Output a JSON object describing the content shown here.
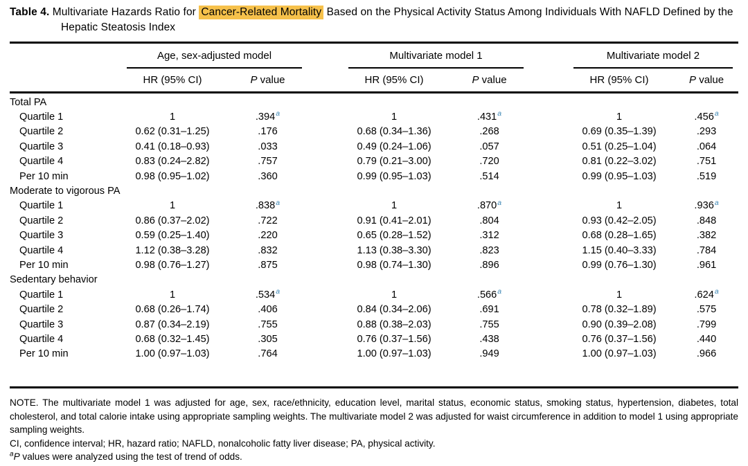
{
  "colors": {
    "highlight": "#F6C14B",
    "superscript_blue": "#3F88B5",
    "text": "#000000",
    "background": "#FFFFFF"
  },
  "title": {
    "label": "Table 4.",
    "before_highlight": " Multivariate Hazards Ratio for ",
    "highlight": "Cancer-Related Mortality",
    "after_highlight": " Based on the Physical Activity Status Among Individuals With NAFLD Defined by the Hepatic Steatosis Index"
  },
  "table": {
    "groups": [
      "Age, sex-adjusted model",
      "Multivariate model 1",
      "Multivariate model 2"
    ],
    "subheaders": {
      "hr_label": "HR (95% CI)",
      "p_italic": "P",
      "p_rest": " value"
    },
    "sections": [
      {
        "label": "Total PA",
        "rows": [
          {
            "label": "Quartile 1",
            "cells": [
              {
                "hr": "1",
                "p": ".394",
                "sup": "a"
              },
              {
                "hr": "1",
                "p": ".431",
                "sup": "a"
              },
              {
                "hr": "1",
                "p": ".456",
                "sup": "a"
              }
            ]
          },
          {
            "label": "Quartile 2",
            "cells": [
              {
                "hr": "0.62 (0.31–1.25)",
                "p": ".176"
              },
              {
                "hr": "0.68 (0.34–1.36)",
                "p": ".268"
              },
              {
                "hr": "0.69 (0.35–1.39)",
                "p": ".293"
              }
            ]
          },
          {
            "label": "Quartile 3",
            "cells": [
              {
                "hr": "0.41 (0.18–0.93)",
                "p": ".033"
              },
              {
                "hr": "0.49 (0.24–1.06)",
                "p": ".057"
              },
              {
                "hr": "0.51 (0.25–1.04)",
                "p": ".064"
              }
            ]
          },
          {
            "label": "Quartile 4",
            "cells": [
              {
                "hr": "0.83 (0.24–2.82)",
                "p": ".757"
              },
              {
                "hr": "0.79 (0.21–3.00)",
                "p": ".720"
              },
              {
                "hr": "0.81 (0.22–3.02)",
                "p": ".751"
              }
            ]
          },
          {
            "label": "Per 10 min",
            "cells": [
              {
                "hr": "0.98 (0.95–1.02)",
                "p": ".360"
              },
              {
                "hr": "0.99 (0.95–1.03)",
                "p": ".514"
              },
              {
                "hr": "0.99 (0.95–1.03)",
                "p": ".519"
              }
            ]
          }
        ]
      },
      {
        "label": "Moderate to vigorous PA",
        "rows": [
          {
            "label": "Quartile 1",
            "cells": [
              {
                "hr": "1",
                "p": ".838",
                "sup": "a"
              },
              {
                "hr": "1",
                "p": ".870",
                "sup": "a"
              },
              {
                "hr": "1",
                "p": ".936",
                "sup": "a"
              }
            ]
          },
          {
            "label": "Quartile 2",
            "cells": [
              {
                "hr": "0.86 (0.37–2.02)",
                "p": ".722"
              },
              {
                "hr": "0.91 (0.41–2.01)",
                "p": ".804"
              },
              {
                "hr": "0.93 (0.42–2.05)",
                "p": ".848"
              }
            ]
          },
          {
            "label": "Quartile 3",
            "cells": [
              {
                "hr": "0.59 (0.25–1.40)",
                "p": ".220"
              },
              {
                "hr": "0.65 (0.28–1.52)",
                "p": ".312"
              },
              {
                "hr": "0.68 (0.28–1.65)",
                "p": ".382"
              }
            ]
          },
          {
            "label": "Quartile 4",
            "cells": [
              {
                "hr": "1.12 (0.38–3.28)",
                "p": ".832"
              },
              {
                "hr": "1.13 (0.38–3.30)",
                "p": ".823"
              },
              {
                "hr": "1.15 (0.40–3.33)",
                "p": ".784"
              }
            ]
          },
          {
            "label": "Per 10 min",
            "cells": [
              {
                "hr": "0.98 (0.76–1.27)",
                "p": ".875"
              },
              {
                "hr": "0.98 (0.74–1.30)",
                "p": ".896"
              },
              {
                "hr": "0.99 (0.76–1.30)",
                "p": ".961"
              }
            ]
          }
        ]
      },
      {
        "label": "Sedentary behavior",
        "rows": [
          {
            "label": "Quartile 1",
            "cells": [
              {
                "hr": "1",
                "p": ".534",
                "sup": "a"
              },
              {
                "hr": "1",
                "p": ".566",
                "sup": "a"
              },
              {
                "hr": "1",
                "p": ".624",
                "sup": "a"
              }
            ]
          },
          {
            "label": "Quartile 2",
            "cells": [
              {
                "hr": "0.68 (0.26–1.74)",
                "p": ".406"
              },
              {
                "hr": "0.84 (0.34–2.06)",
                "p": ".691"
              },
              {
                "hr": "0.78 (0.32–1.89)",
                "p": ".575"
              }
            ]
          },
          {
            "label": "Quartile 3",
            "cells": [
              {
                "hr": "0.87 (0.34–2.19)",
                "p": ".755"
              },
              {
                "hr": "0.88 (0.38–2.03)",
                "p": ".755"
              },
              {
                "hr": "0.90 (0.39–2.08)",
                "p": ".799"
              }
            ]
          },
          {
            "label": "Quartile 4",
            "cells": [
              {
                "hr": "0.68 (0.32–1.45)",
                "p": ".305"
              },
              {
                "hr": "0.76 (0.37–1.56)",
                "p": ".438"
              },
              {
                "hr": "0.76 (0.37–1.56)",
                "p": ".440"
              }
            ]
          },
          {
            "label": "Per 10 min",
            "cells": [
              {
                "hr": "1.00 (0.97–1.03)",
                "p": ".764"
              },
              {
                "hr": "1.00 (0.97–1.03)",
                "p": ".949"
              },
              {
                "hr": "1.00 (0.97–1.03)",
                "p": ".966"
              }
            ]
          }
        ]
      }
    ]
  },
  "footnotes": {
    "note": "NOTE. The multivariate model 1 was adjusted for age, sex, race/ethnicity, education level, marital status, economic status, smoking status, hypertension, diabetes, total cholesterol, and total calorie intake using appropriate sampling weights. The multivariate model 2 was adjusted for waist circumference in addition to model 1 using appropriate sampling weights.",
    "abbreviations": "CI, confidence interval; HR, hazard ratio; NAFLD, nonalcoholic fatty liver disease; PA, physical activity.",
    "fn_a_sup": "a",
    "fn_a_italic": "P",
    "fn_a_text": " values were analyzed using the test of trend of odds."
  }
}
